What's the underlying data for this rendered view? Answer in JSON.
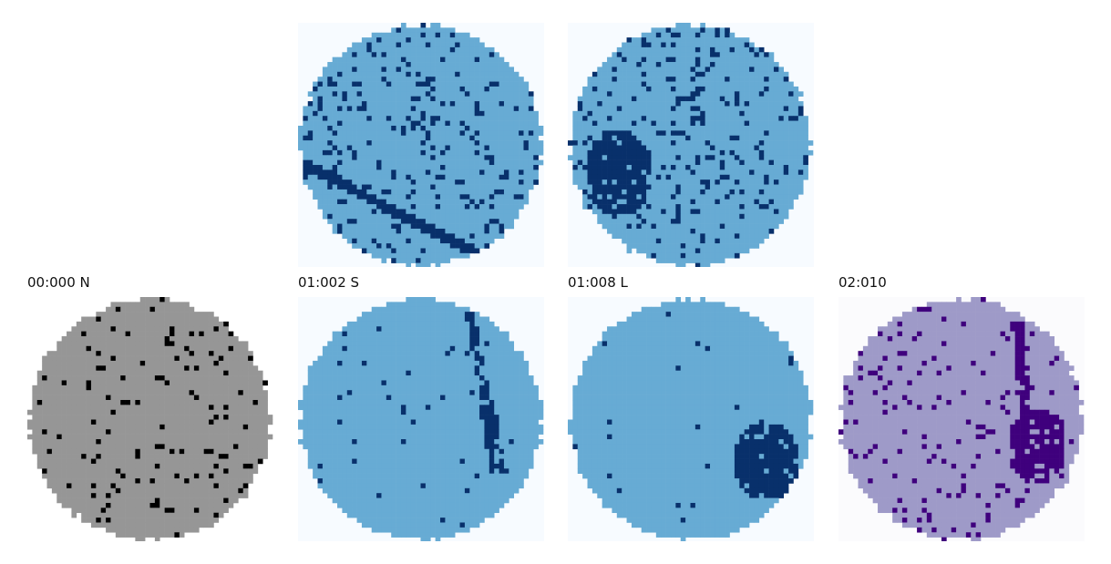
{
  "panels": [
    {
      "id": "p-top-1",
      "label": "",
      "bg": "#f7fbff",
      "fill": "#67abd4",
      "dark": "#08306b",
      "dots": 0.13,
      "pattern": "diagonal",
      "seed": 11
    },
    {
      "id": "p-top-2",
      "label": "",
      "bg": "#f7fbff",
      "fill": "#67abd4",
      "dark": "#08306b",
      "dots": 0.12,
      "pattern": "blob-left",
      "seed": 23
    },
    {
      "id": "p-bot-1",
      "label": "00:000 N",
      "bg": "#ffffff",
      "fill": "#969696",
      "dark": "#000000",
      "dots": 0.06,
      "pattern": "none",
      "seed": 37
    },
    {
      "id": "p-bot-2",
      "label": "01:002 S",
      "bg": "#f7fbff",
      "fill": "#67abd4",
      "dark": "#08306b",
      "dots": 0.015,
      "pattern": "crack",
      "seed": 41
    },
    {
      "id": "p-bot-3",
      "label": "01:008 L",
      "bg": "#f7fbff",
      "fill": "#67abd4",
      "dark": "#08306b",
      "dots": 0.015,
      "pattern": "blob-right",
      "seed": 53
    },
    {
      "id": "p-bot-4",
      "label": "02:010",
      "bg": "#fbfbfd",
      "fill": "#9e9ac8",
      "dark": "#3f007d",
      "dots": 0.07,
      "pattern": "crack-blob",
      "seed": 67
    }
  ]
}
